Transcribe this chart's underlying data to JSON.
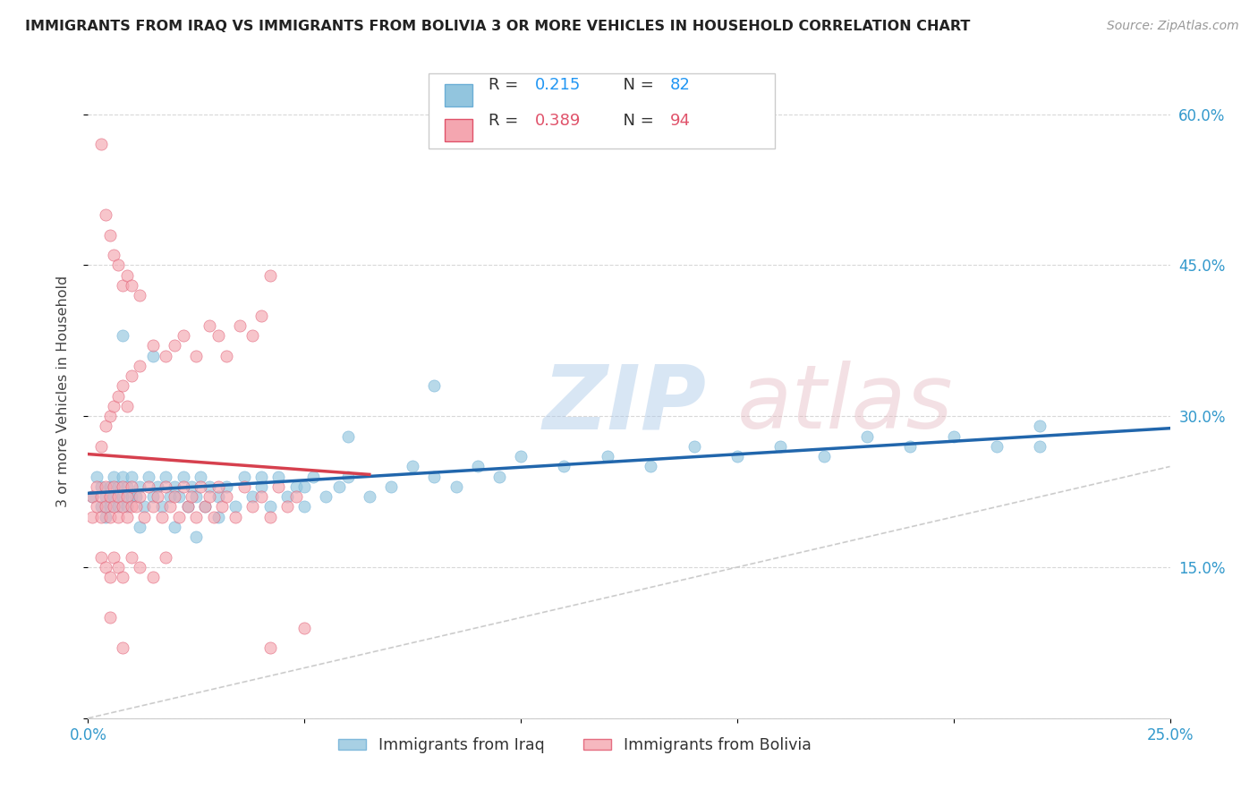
{
  "title": "IMMIGRANTS FROM IRAQ VS IMMIGRANTS FROM BOLIVIA 3 OR MORE VEHICLES IN HOUSEHOLD CORRELATION CHART",
  "source": "Source: ZipAtlas.com",
  "ylabel": "3 or more Vehicles in Household",
  "xlim": [
    0.0,
    0.25
  ],
  "ylim": [
    0.0,
    0.65
  ],
  "yticks": [
    0.0,
    0.15,
    0.3,
    0.45,
    0.6
  ],
  "ytick_labels": [
    "",
    "15.0%",
    "30.0%",
    "45.0%",
    "60.0%"
  ],
  "xtick_positions": [
    0.0,
    0.05,
    0.1,
    0.15,
    0.2,
    0.25
  ],
  "xtick_labels": [
    "0.0%",
    "",
    "",
    "",
    "",
    "25.0%"
  ],
  "iraq_color": "#92c5de",
  "iraq_edge_color": "#6baed6",
  "bolivia_color": "#f4a6b0",
  "bolivia_edge_color": "#e0526a",
  "iraq_R": 0.215,
  "iraq_N": 82,
  "bolivia_R": 0.389,
  "bolivia_N": 94,
  "diagonal_color": "#cccccc",
  "iraq_line_color": "#2166ac",
  "bolivia_line_color": "#d6404e",
  "legend_iraq_label": "Immigrants from Iraq",
  "legend_bolivia_label": "Immigrants from Bolivia",
  "iraq_x": [
    0.001,
    0.002,
    0.003,
    0.003,
    0.004,
    0.004,
    0.005,
    0.005,
    0.006,
    0.006,
    0.007,
    0.007,
    0.008,
    0.008,
    0.009,
    0.009,
    0.01,
    0.01,
    0.011,
    0.012,
    0.013,
    0.014,
    0.015,
    0.016,
    0.017,
    0.018,
    0.019,
    0.02,
    0.021,
    0.022,
    0.023,
    0.024,
    0.025,
    0.026,
    0.027,
    0.028,
    0.03,
    0.032,
    0.034,
    0.036,
    0.038,
    0.04,
    0.042,
    0.044,
    0.046,
    0.048,
    0.05,
    0.052,
    0.055,
    0.058,
    0.06,
    0.065,
    0.07,
    0.075,
    0.08,
    0.085,
    0.09,
    0.095,
    0.1,
    0.11,
    0.12,
    0.13,
    0.14,
    0.15,
    0.16,
    0.17,
    0.18,
    0.19,
    0.2,
    0.21,
    0.22,
    0.008,
    0.012,
    0.015,
    0.02,
    0.025,
    0.03,
    0.04,
    0.05,
    0.06,
    0.08,
    0.22
  ],
  "iraq_y": [
    0.22,
    0.24,
    0.21,
    0.23,
    0.2,
    0.22,
    0.21,
    0.23,
    0.22,
    0.24,
    0.21,
    0.23,
    0.22,
    0.24,
    0.21,
    0.23,
    0.22,
    0.24,
    0.22,
    0.23,
    0.21,
    0.24,
    0.22,
    0.23,
    0.21,
    0.24,
    0.22,
    0.23,
    0.22,
    0.24,
    0.21,
    0.23,
    0.22,
    0.24,
    0.21,
    0.23,
    0.22,
    0.23,
    0.21,
    0.24,
    0.22,
    0.23,
    0.21,
    0.24,
    0.22,
    0.23,
    0.21,
    0.24,
    0.22,
    0.23,
    0.24,
    0.22,
    0.23,
    0.25,
    0.24,
    0.23,
    0.25,
    0.24,
    0.26,
    0.25,
    0.26,
    0.25,
    0.27,
    0.26,
    0.27,
    0.26,
    0.28,
    0.27,
    0.28,
    0.27,
    0.29,
    0.38,
    0.19,
    0.36,
    0.19,
    0.18,
    0.2,
    0.24,
    0.23,
    0.28,
    0.33,
    0.27
  ],
  "bolivia_x": [
    0.001,
    0.001,
    0.002,
    0.002,
    0.003,
    0.003,
    0.004,
    0.004,
    0.005,
    0.005,
    0.006,
    0.006,
    0.007,
    0.007,
    0.008,
    0.008,
    0.009,
    0.009,
    0.01,
    0.01,
    0.011,
    0.012,
    0.013,
    0.014,
    0.015,
    0.016,
    0.017,
    0.018,
    0.019,
    0.02,
    0.021,
    0.022,
    0.023,
    0.024,
    0.025,
    0.026,
    0.027,
    0.028,
    0.029,
    0.03,
    0.031,
    0.032,
    0.034,
    0.036,
    0.038,
    0.04,
    0.042,
    0.044,
    0.046,
    0.048,
    0.003,
    0.004,
    0.005,
    0.006,
    0.007,
    0.008,
    0.009,
    0.01,
    0.012,
    0.015,
    0.018,
    0.02,
    0.022,
    0.025,
    0.028,
    0.03,
    0.032,
    0.035,
    0.038,
    0.04,
    0.003,
    0.004,
    0.005,
    0.006,
    0.007,
    0.008,
    0.01,
    0.012,
    0.015,
    0.018,
    0.003,
    0.004,
    0.005,
    0.006,
    0.007,
    0.008,
    0.009,
    0.01,
    0.012,
    0.05,
    0.008,
    0.042,
    0.005,
    0.042
  ],
  "bolivia_y": [
    0.2,
    0.22,
    0.21,
    0.23,
    0.2,
    0.22,
    0.21,
    0.23,
    0.2,
    0.22,
    0.21,
    0.23,
    0.2,
    0.22,
    0.21,
    0.23,
    0.2,
    0.22,
    0.21,
    0.23,
    0.21,
    0.22,
    0.2,
    0.23,
    0.21,
    0.22,
    0.2,
    0.23,
    0.21,
    0.22,
    0.2,
    0.23,
    0.21,
    0.22,
    0.2,
    0.23,
    0.21,
    0.22,
    0.2,
    0.23,
    0.21,
    0.22,
    0.2,
    0.23,
    0.21,
    0.22,
    0.2,
    0.23,
    0.21,
    0.22,
    0.27,
    0.29,
    0.3,
    0.31,
    0.32,
    0.33,
    0.31,
    0.34,
    0.35,
    0.37,
    0.36,
    0.37,
    0.38,
    0.36,
    0.39,
    0.38,
    0.36,
    0.39,
    0.38,
    0.4,
    0.16,
    0.15,
    0.14,
    0.16,
    0.15,
    0.14,
    0.16,
    0.15,
    0.14,
    0.16,
    0.57,
    0.5,
    0.48,
    0.46,
    0.45,
    0.43,
    0.44,
    0.43,
    0.42,
    0.09,
    0.07,
    0.44,
    0.1,
    0.07
  ]
}
